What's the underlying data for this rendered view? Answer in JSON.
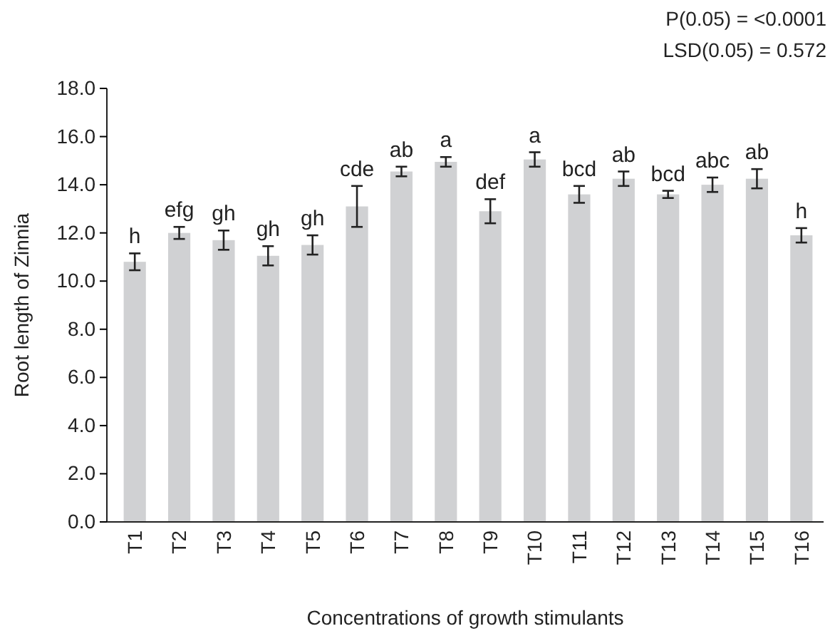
{
  "chart_data": {
    "type": "bar",
    "xlabel": "Concentrations of growth stimulants",
    "ylabel": "Root length of Zinnia",
    "categories": [
      "T1",
      "T2",
      "T3",
      "T4",
      "T5",
      "T6",
      "T7",
      "T8",
      "T9",
      "T10",
      "T11",
      "T12",
      "T13",
      "T14",
      "T15",
      "T16"
    ],
    "values": [
      10.8,
      12.0,
      11.7,
      11.05,
      11.5,
      13.1,
      14.55,
      14.95,
      12.9,
      15.05,
      13.6,
      14.25,
      13.6,
      14.0,
      14.25,
      11.9
    ],
    "errors": [
      0.35,
      0.25,
      0.4,
      0.4,
      0.4,
      0.85,
      0.2,
      0.2,
      0.5,
      0.3,
      0.35,
      0.3,
      0.15,
      0.3,
      0.4,
      0.3
    ],
    "color": "#d0d1d3",
    "ylim": [
      0,
      18
    ],
    "yticks": [
      {
        "value": 0,
        "label": "0.0"
      },
      {
        "value": 2,
        "label": "2.0"
      },
      {
        "value": 4,
        "label": "4.0"
      },
      {
        "value": 6,
        "label": "6.0"
      },
      {
        "value": 8,
        "label": "8.0"
      },
      {
        "value": 10,
        "label": "10.0"
      },
      {
        "value": 12,
        "label": "12.0"
      },
      {
        "value": 14,
        "label": "14.0"
      },
      {
        "value": 16,
        "label": "16.0"
      },
      {
        "value": 18,
        "label": "18.0"
      }
    ],
    "grid": false,
    "annotations": [
      "P(0.05) = <0.0001",
      "LSD(0.05) = 0.572",
      {
        "text": "h",
        "x": "T1",
        "y": 11.15
      },
      {
        "text": "efg",
        "x": "T2",
        "y": 12.25
      },
      {
        "text": "gh",
        "x": "T3",
        "y": 12.1
      },
      {
        "text": "gh",
        "x": "T4",
        "y": 11.45
      },
      {
        "text": "gh",
        "x": "T5",
        "y": 11.9
      },
      {
        "text": "cde",
        "x": "T6",
        "y": 13.95
      },
      {
        "text": "ab",
        "x": "T7",
        "y": 14.75
      },
      {
        "text": "a",
        "x": "T8",
        "y": 15.15
      },
      {
        "text": "def",
        "x": "T9",
        "y": 13.4
      },
      {
        "text": "a",
        "x": "T10",
        "y": 15.35
      },
      {
        "text": "bcd",
        "x": "T11",
        "y": 13.95
      },
      {
        "text": "ab",
        "x": "T12",
        "y": 14.55
      },
      {
        "text": "bcd",
        "x": "T13",
        "y": 13.75
      },
      {
        "text": "abc",
        "x": "T14",
        "y": 14.3
      },
      {
        "text": "ab",
        "x": "T15",
        "y": 14.65
      },
      {
        "text": "h",
        "x": "T16",
        "y": 12.2
      }
    ]
  }
}
